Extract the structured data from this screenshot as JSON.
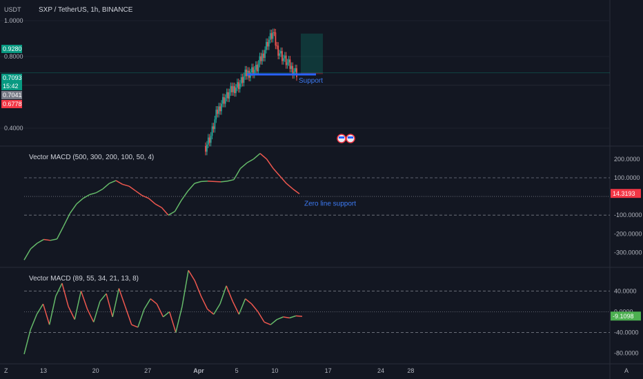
{
  "header": {
    "currency": "USDT",
    "title": "SXP / TetherUS, 1h, BINANCE"
  },
  "colors": {
    "bg": "#131722",
    "green": "#26a69a",
    "red": "#ef5350",
    "macd_green": "#66bb6a",
    "macd_red": "#f0584f",
    "blue": "#2962ff",
    "annotation_blue": "#3d7bf5"
  },
  "chart_data": [
    {
      "type": "candlestick",
      "panel": "price",
      "y_ticks": [
        "1.0000",
        "0.8000",
        "0.4000"
      ],
      "ylim": [
        0.3,
        1.0
      ],
      "price_labels": [
        {
          "value": "0.9280",
          "color": "#089981"
        },
        {
          "value": "0.7093",
          "color": "#089981"
        },
        {
          "value": "15:42",
          "color": "#089981"
        },
        {
          "value": "0.7041",
          "color": "#787b86"
        },
        {
          "value": "0.6778",
          "color": "#f23645"
        }
      ],
      "support_level": 0.7,
      "annotation": "Support",
      "close_path": [
        [
          0,
          0.3
        ],
        [
          0.06,
          0.36
        ],
        [
          0.12,
          0.48
        ],
        [
          0.18,
          0.55
        ],
        [
          0.24,
          0.58
        ],
        [
          0.3,
          0.62
        ],
        [
          0.38,
          0.65
        ],
        [
          0.44,
          0.7
        ],
        [
          0.5,
          0.72
        ],
        [
          0.56,
          0.73
        ],
        [
          0.62,
          0.8
        ],
        [
          0.68,
          0.88
        ],
        [
          0.74,
          0.93
        ],
        [
          0.78,
          0.85
        ],
        [
          0.84,
          0.8
        ],
        [
          0.9,
          0.76
        ],
        [
          0.95,
          0.73
        ],
        [
          1.0,
          0.71
        ]
      ],
      "long_position": {
        "entry": 0.7093,
        "target": 0.928,
        "stop": 0.704
      }
    },
    {
      "type": "line",
      "panel": "indicator-1",
      "title": "Vector MACD (500, 300, 200, 100, 50, 4)",
      "y_ticks": [
        "200.0000",
        "100.0000",
        "-100.0000",
        "-200.0000",
        "-300.0000"
      ],
      "ylim": [
        -350,
        240
      ],
      "levels": [
        100,
        0,
        -100
      ],
      "last_value": "14.3193",
      "annotation": "Zero line support",
      "series": [
        {
          "values": [
            -340,
            -280,
            -250,
            -230,
            -235,
            -228,
            -160,
            -90,
            -40,
            -10,
            10,
            20,
            40,
            70,
            85,
            65,
            55,
            30,
            5,
            -10,
            -40,
            -60,
            -100,
            -80,
            -20,
            30,
            70,
            80,
            82,
            80,
            78,
            82,
            90,
            150,
            180,
            200,
            230,
            200,
            150,
            110,
            70,
            40,
            14
          ]
        }
      ]
    },
    {
      "type": "line",
      "panel": "indicator-2",
      "title": "Vector MACD (89, 55, 34, 21, 13, 8)",
      "y_ticks": [
        "40.0000",
        "0.0000",
        "-40.0000",
        "-80.0000"
      ],
      "ylim": [
        -90,
        75
      ],
      "levels": [
        40,
        0,
        -40
      ],
      "last_value": "-9.1098",
      "series": [
        {
          "values": [
            -82,
            -35,
            -5,
            15,
            -25,
            30,
            55,
            10,
            -15,
            40,
            5,
            -20,
            20,
            35,
            -10,
            45,
            10,
            -25,
            -30,
            5,
            25,
            15,
            -10,
            0,
            -40,
            10,
            80,
            60,
            30,
            5,
            -5,
            15,
            50,
            20,
            -5,
            25,
            15,
            0,
            -20,
            -25,
            -15,
            -10,
            -12,
            -8,
            -9
          ]
        }
      ]
    }
  ],
  "x_axis": {
    "ticks": [
      {
        "label": "13",
        "x": 0.033
      },
      {
        "label": "20",
        "x": 0.122
      },
      {
        "label": "27",
        "x": 0.211
      },
      {
        "label": "Apr",
        "x": 0.298
      },
      {
        "label": "5",
        "x": 0.363
      },
      {
        "label": "10",
        "x": 0.428
      },
      {
        "label": "17",
        "x": 0.519
      },
      {
        "label": "24",
        "x": 0.609
      },
      {
        "label": "28",
        "x": 0.66
      }
    ],
    "left_mark": "Z",
    "right_mark": "A"
  }
}
